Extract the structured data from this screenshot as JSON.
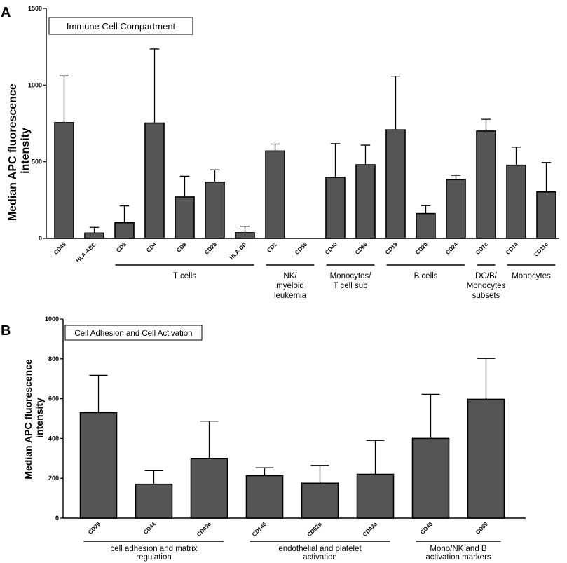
{
  "chart_data": [
    {
      "type": "bar",
      "panel_label": "A",
      "title": "Immune Cell Compartment",
      "ylabel": [
        "Median APC fluorescence",
        "intensity"
      ],
      "ylim": [
        0,
        1500
      ],
      "yticks": [
        0,
        500,
        1000,
        1500
      ],
      "categories": [
        "CD45",
        "HLA-ABC",
        "CD3",
        "CD4",
        "CD8",
        "CD25",
        "HLA-DR",
        "CD2",
        "CD56",
        "CD40",
        "CD86",
        "CD19",
        "CD20",
        "CD24",
        "CD1c",
        "CD14",
        "CD11c"
      ],
      "values": [
        755,
        35,
        102,
        752,
        270,
        367,
        37,
        570,
        0,
        398,
        480,
        708,
        162,
        383,
        700,
        477,
        303
      ],
      "errors": [
        305,
        37,
        110,
        483,
        135,
        80,
        42,
        45,
        0,
        220,
        128,
        350,
        52,
        28,
        77,
        118,
        192
      ],
      "groups": [
        {
          "label": [
            "T cells"
          ],
          "start": 2,
          "end": 6
        },
        {
          "label": [
            "NK/",
            "myeloid",
            "leukemia"
          ],
          "start": 7,
          "end": 8
        },
        {
          "label": [
            "Monocytes/",
            "T cell sub"
          ],
          "start": 9,
          "end": 10
        },
        {
          "label": [
            "B cells"
          ],
          "start": 11,
          "end": 13
        },
        {
          "label": [
            "DC/B/",
            "Monocytes",
            "subsets"
          ],
          "start": 14,
          "end": 14
        },
        {
          "label": [
            "Monocytes"
          ],
          "start": 15,
          "end": 16
        }
      ]
    },
    {
      "type": "bar",
      "panel_label": "B",
      "title": "Cell Adhesion and Cell Activation",
      "ylabel": [
        "Median APC fluorescence",
        "intensity"
      ],
      "ylim": [
        0,
        1000
      ],
      "yticks": [
        0,
        200,
        400,
        600,
        800,
        1000
      ],
      "categories": [
        "CD29",
        "CD44",
        "CD49e",
        "CD146",
        "CD62p",
        "CD42a",
        "CD40",
        "CD69"
      ],
      "values": [
        530,
        170,
        300,
        213,
        175,
        220,
        400,
        597
      ],
      "errors": [
        187,
        68,
        187,
        40,
        90,
        170,
        222,
        205
      ],
      "groups": [
        {
          "label": [
            "cell adhesion and matrix",
            "regulation"
          ],
          "start": 0,
          "end": 2
        },
        {
          "label": [
            "endothelial and platelet",
            "activation"
          ],
          "start": 3,
          "end": 5
        },
        {
          "label": [
            "Mono/NK and B",
            "activation markers"
          ],
          "start": 6,
          "end": 7
        }
      ]
    }
  ]
}
